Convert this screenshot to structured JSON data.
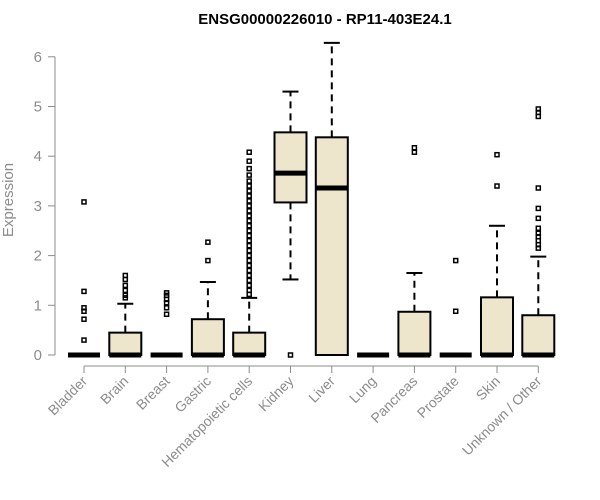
{
  "chart_data": {
    "type": "boxplot",
    "title": "ENSG00000226010 - RP11-403E24.1",
    "ylabel": "Expression",
    "xlabel": "",
    "ylim": [
      0,
      6.3
    ],
    "yticks": [
      0,
      1,
      2,
      3,
      4,
      5,
      6
    ],
    "box_fill": "#ede6cc",
    "categories": [
      "Bladder",
      "Brain",
      "Breast",
      "Gastric",
      "Hematopoietic cells",
      "Kidney",
      "Liver",
      "Lung",
      "Pancreas",
      "Prostate",
      "Skin",
      "Unknown / Other"
    ],
    "boxes": [
      {
        "q1": 0,
        "median": 0,
        "q3": 0,
        "whisker_low": 0,
        "whisker_high": 0,
        "outliers": [
          3.08,
          1.28,
          0.95,
          0.88,
          0.72,
          0.3
        ]
      },
      {
        "q1": 0,
        "median": 0,
        "q3": 0.45,
        "whisker_low": 0,
        "whisker_high": 1.03,
        "outliers": [
          1.6,
          1.52,
          1.4,
          1.3,
          1.2,
          1.15
        ]
      },
      {
        "q1": 0,
        "median": 0,
        "q3": 0,
        "whisker_low": 0,
        "whisker_high": 0,
        "outliers": [
          1.25,
          1.2,
          1.12,
          1.05,
          0.95,
          0.82
        ]
      },
      {
        "q1": 0,
        "median": 0,
        "q3": 0.72,
        "whisker_low": 0,
        "whisker_high": 1.47,
        "outliers": [
          2.27,
          1.9
        ]
      },
      {
        "q1": 0,
        "median": 0,
        "q3": 0.45,
        "whisker_low": 0,
        "whisker_high": 1.15,
        "outliers": [
          4.08,
          3.9,
          3.75,
          3.62,
          3.5,
          3.4,
          3.3,
          3.2,
          3.1,
          3.0,
          2.9,
          2.8,
          2.7,
          2.6,
          2.5,
          2.4,
          2.3,
          2.2,
          2.1,
          2.0,
          1.9,
          1.8,
          1.7,
          1.6,
          1.5,
          1.4,
          1.3,
          1.22
        ]
      },
      {
        "q1": 3.07,
        "median": 3.66,
        "q3": 4.48,
        "whisker_low": 1.52,
        "whisker_high": 5.3,
        "outliers": [
          0
        ]
      },
      {
        "q1": 0,
        "median": 3.36,
        "q3": 4.38,
        "whisker_low": 0,
        "whisker_high": 6.28,
        "outliers": []
      },
      {
        "q1": 0,
        "median": 0,
        "q3": 0,
        "whisker_low": 0,
        "whisker_high": 0,
        "outliers": []
      },
      {
        "q1": 0,
        "median": 0,
        "q3": 0.87,
        "whisker_low": 0,
        "whisker_high": 1.65,
        "outliers": [
          4.17,
          4.08
        ]
      },
      {
        "q1": 0,
        "median": 0,
        "q3": 0,
        "whisker_low": 0,
        "whisker_high": 0,
        "outliers": [
          1.9,
          0.88
        ]
      },
      {
        "q1": 0,
        "median": 0,
        "q3": 1.16,
        "whisker_low": 0,
        "whisker_high": 2.6,
        "outliers": [
          4.03,
          3.4
        ]
      },
      {
        "q1": 0,
        "median": 0,
        "q3": 0.8,
        "whisker_low": 0,
        "whisker_high": 1.98,
        "outliers": [
          4.95,
          4.88,
          4.8,
          3.36,
          2.95,
          2.75,
          2.55,
          2.45,
          2.38,
          2.3,
          2.22,
          2.15
        ]
      }
    ]
  }
}
